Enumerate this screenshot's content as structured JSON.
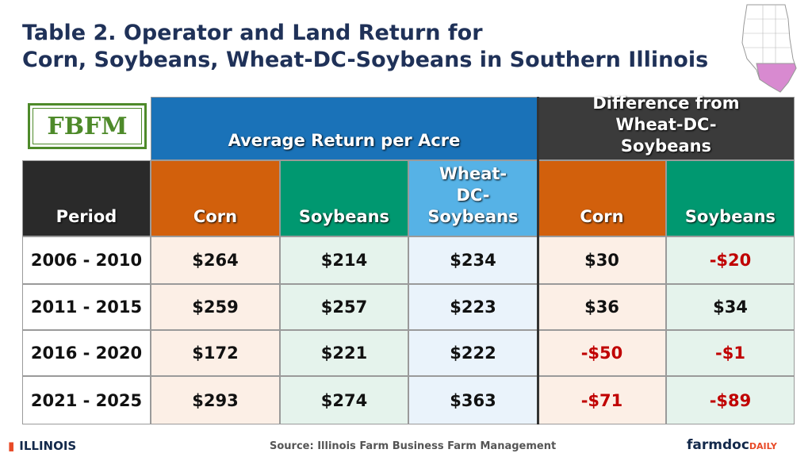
{
  "header": {
    "title": [
      "Table 2. Operator and Land Return for",
      "Corn, Soybeans, Wheat-DC-Soybeans in Southern Illinois"
    ]
  },
  "logo": "FBFM",
  "table": {
    "group_headers": [
      "Average Return per Acre",
      "Difference from Wheat-DC-Soybeans"
    ],
    "columns": [
      "Period",
      "Corn",
      "Soybeans",
      "Wheat-DC-Soybeans",
      "Corn",
      "Soybeans"
    ],
    "rows": [
      [
        "2006 - 2010",
        "$264",
        "$214",
        "$234",
        "$30",
        "-$20"
      ],
      [
        "2011 - 2015",
        "$259",
        "$257",
        "$223",
        "$36",
        "$34"
      ],
      [
        "2016 - 2020",
        "$172",
        "$221",
        "$222",
        "-$50",
        "-$1"
      ],
      [
        "2021 - 2025",
        "$293",
        "$274",
        "$363",
        "-$71",
        "-$89"
      ]
    ]
  },
  "footer": {
    "university": "ILLINOIS",
    "source": "Source: Illinois Farm Business Farm Management",
    "brand": "farmdoc",
    "brand_suffix": "DAILY"
  }
}
